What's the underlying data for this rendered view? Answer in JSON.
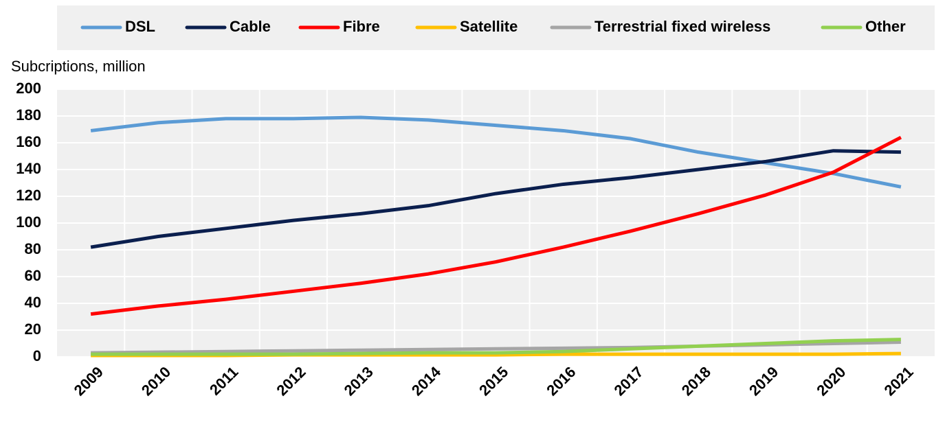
{
  "chart_data": {
    "type": "line",
    "y_label": "Subcriptions, million",
    "categories": [
      "2009",
      "2010",
      "2011",
      "2012",
      "2013",
      "2014",
      "2015",
      "2016",
      "2017",
      "2018",
      "2019",
      "2020",
      "2021"
    ],
    "series": [
      {
        "name": "DSL",
        "color": "#5b9bd5",
        "values": [
          169,
          175,
          178,
          178,
          179,
          177,
          173,
          169,
          163,
          153,
          145,
          137,
          127
        ]
      },
      {
        "name": "Cable",
        "color": "#0b1f4e",
        "values": [
          82,
          90,
          96,
          102,
          107,
          113,
          122,
          129,
          134,
          140,
          146,
          154,
          153
        ]
      },
      {
        "name": "Fibre",
        "color": "#ff0000",
        "values": [
          32,
          38,
          43,
          49,
          55,
          62,
          71,
          82,
          94,
          107,
          121,
          138,
          164
        ]
      },
      {
        "name": "Satellite",
        "color": "#ffc000",
        "values": [
          1,
          1,
          1,
          1.5,
          1.5,
          1.5,
          1.5,
          2,
          2,
          2,
          2,
          2,
          2.5
        ]
      },
      {
        "name": "Terrestrial fixed wireless",
        "color": "#a5a5a5",
        "values": [
          3,
          3.5,
          4,
          4.5,
          5,
          5.5,
          6,
          6.5,
          7,
          8,
          9,
          10,
          11
        ]
      },
      {
        "name": "Other",
        "color": "#92d050",
        "values": [
          2,
          2,
          2,
          2,
          2.5,
          3,
          3,
          4,
          6,
          8,
          10,
          12,
          13
        ]
      }
    ],
    "ylim": [
      0,
      200
    ],
    "yticks": [
      0,
      20,
      40,
      60,
      80,
      100,
      120,
      140,
      160,
      180,
      200
    ],
    "grid": true,
    "legend": "top"
  }
}
